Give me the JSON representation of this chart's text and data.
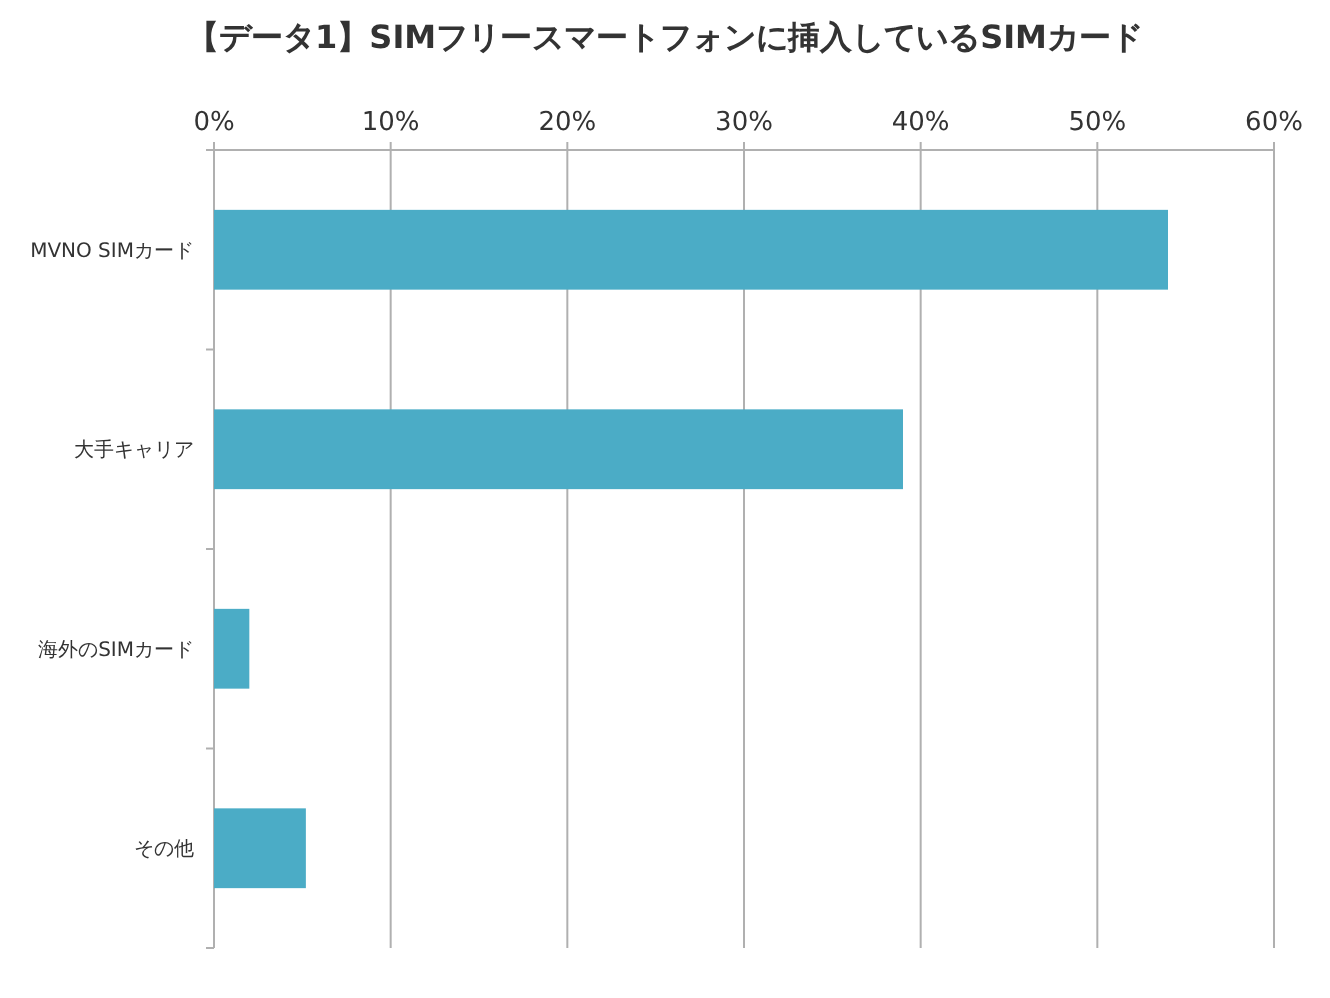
{
  "chart_data": {
    "type": "bar",
    "orientation": "horizontal",
    "title": "【データ1】SIMフリースマートフォンに挿入しているSIMカード",
    "categories": [
      "MVNO SIMカード",
      "大手キャリア",
      "海外のSIMカード",
      "その他"
    ],
    "values": [
      54,
      39,
      2,
      5.2
    ],
    "color": "#4bacc6",
    "xlim": [
      0,
      60
    ],
    "xticks": [
      {
        "value": 0,
        "label": "0%"
      },
      {
        "value": 10,
        "label": "10%"
      },
      {
        "value": 20,
        "label": "20%"
      },
      {
        "value": 30,
        "label": "30%"
      },
      {
        "value": 40,
        "label": "40%"
      },
      {
        "value": 50,
        "label": "50%"
      },
      {
        "value": 60,
        "label": "60%"
      }
    ],
    "grid": "x"
  }
}
